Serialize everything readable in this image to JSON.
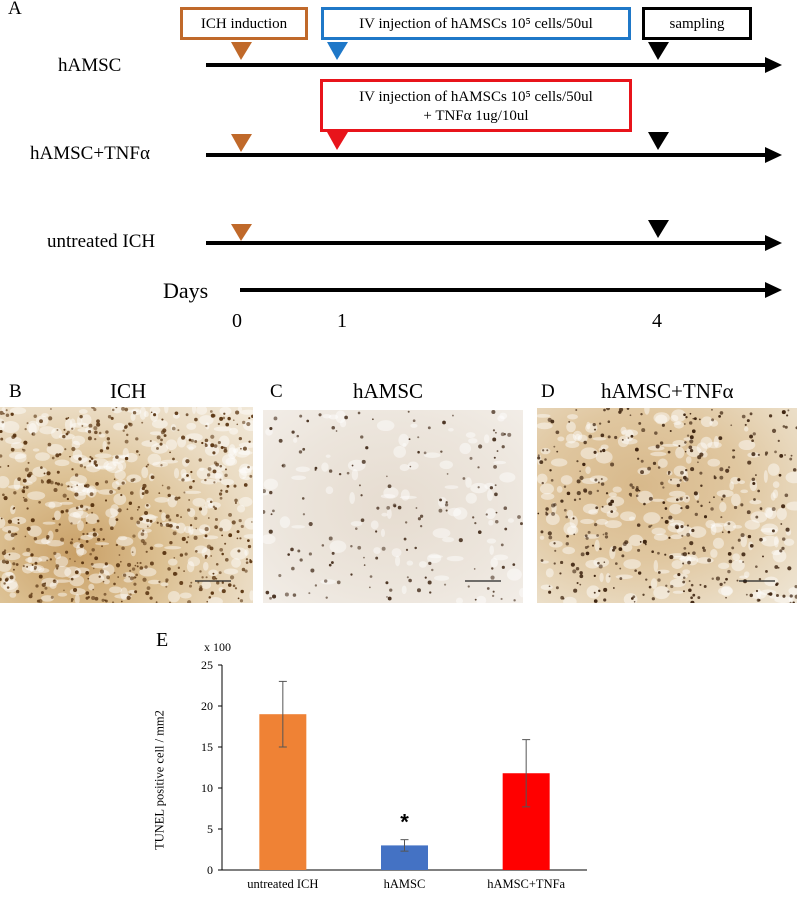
{
  "panel_a": {
    "letter": "A",
    "boxes": {
      "ich_induction": "ICH induction",
      "iv_injection": "IV injection of hAMSCs 10⁵ cells/50ul",
      "iv_injection_tnf_line1": "IV injection of hAMSCs 10⁵ cells/50ul",
      "iv_injection_tnf_line2": "+ TNFα 1ug/10ul",
      "sampling": "sampling"
    },
    "rows": {
      "hamsc": "hAMSC",
      "hamsc_tnf": "hAMSC+TNFα",
      "untreated": "untreated ICH",
      "days": "Days"
    },
    "day_ticks": [
      "0",
      "1",
      "4"
    ],
    "colors": {
      "induction": "#c0692a",
      "injection": "#1f78c8",
      "injection_tnf": "#e8141b",
      "sampling": "#000000"
    }
  },
  "micrographs": [
    {
      "letter": "B",
      "title": "ICH"
    },
    {
      "letter": "C",
      "title": "hAMSC"
    },
    {
      "letter": "D",
      "title": "hAMSC+TNFα"
    }
  ],
  "panel_e": {
    "letter": "E",
    "multiplier": "x 100",
    "significance_mark": "*"
  },
  "chart_data": {
    "type": "bar",
    "categories": [
      "untreated ICH",
      "hAMSC",
      "hAMSC+TNFa"
    ],
    "values": [
      19.0,
      3.0,
      11.8
    ],
    "errors": [
      4.0,
      0.7,
      4.1
    ],
    "colors": [
      "#ef8235",
      "#4472c4",
      "#ff0000"
    ],
    "ylabel": "TUNEL positive cell / mm2",
    "ylim": [
      0,
      25
    ],
    "yticks": [
      0,
      5,
      10,
      15,
      20,
      25
    ],
    "grid": false
  }
}
